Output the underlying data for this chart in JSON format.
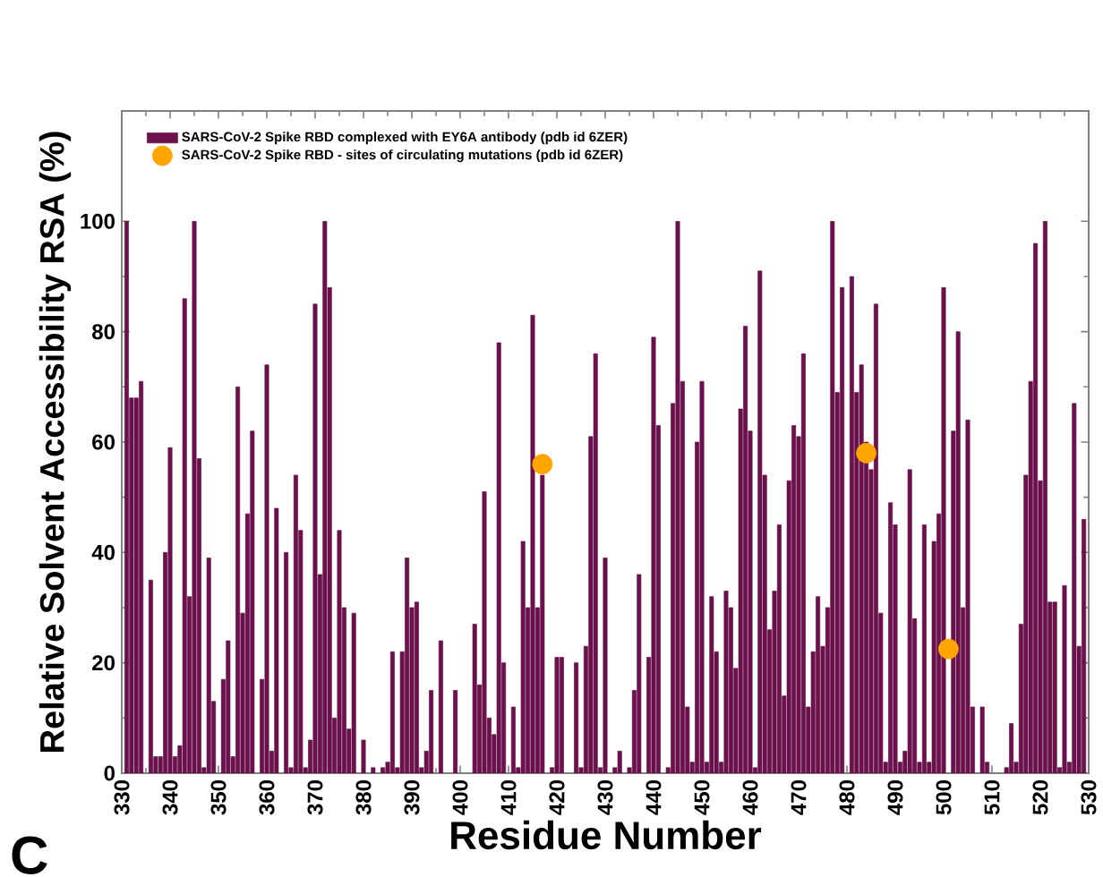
{
  "chart_data": {
    "type": "bar",
    "xlabel": "Residue Number",
    "ylabel": "Relative Solvent Accessibility RSA (%)",
    "annotations": [
      "C"
    ],
    "xlim": [
      330,
      530
    ],
    "ylim": [
      0,
      120
    ],
    "xticks": [
      330,
      340,
      350,
      360,
      370,
      380,
      390,
      400,
      410,
      420,
      430,
      440,
      450,
      460,
      470,
      480,
      490,
      500,
      510,
      520,
      530
    ],
    "yticks": [
      0,
      20,
      40,
      60,
      80,
      100
    ],
    "legend": "top left",
    "marker": "circle",
    "series": [
      {
        "name": "SARS-CoV-2 Spike RBD  complexed with EY6A antibody (pdb id 6ZER)",
        "color": "#6e0f4e",
        "x": [
          331,
          332,
          333,
          334,
          335,
          336,
          337,
          338,
          339,
          340,
          341,
          342,
          343,
          344,
          345,
          346,
          347,
          348,
          349,
          350,
          351,
          352,
          353,
          354,
          355,
          356,
          357,
          358,
          359,
          360,
          361,
          362,
          363,
          364,
          365,
          366,
          367,
          368,
          369,
          370,
          371,
          372,
          373,
          374,
          375,
          376,
          377,
          378,
          379,
          380,
          381,
          382,
          383,
          384,
          385,
          386,
          387,
          388,
          389,
          390,
          391,
          392,
          393,
          394,
          395,
          396,
          397,
          398,
          399,
          400,
          401,
          402,
          403,
          404,
          405,
          406,
          407,
          408,
          409,
          410,
          411,
          412,
          413,
          414,
          415,
          416,
          417,
          418,
          419,
          420,
          421,
          422,
          423,
          424,
          425,
          426,
          427,
          428,
          429,
          430,
          431,
          432,
          433,
          434,
          435,
          436,
          437,
          438,
          439,
          440,
          441,
          442,
          443,
          444,
          445,
          446,
          447,
          448,
          449,
          450,
          451,
          452,
          453,
          454,
          455,
          456,
          457,
          458,
          459,
          460,
          461,
          462,
          463,
          464,
          465,
          466,
          467,
          468,
          469,
          470,
          471,
          472,
          473,
          474,
          475,
          476,
          477,
          478,
          479,
          480,
          481,
          482,
          483,
          484,
          485,
          486,
          487,
          488,
          489,
          490,
          491,
          492,
          493,
          494,
          495,
          496,
          497,
          498,
          499,
          500,
          501,
          502,
          503,
          504,
          505,
          506,
          507,
          508,
          509,
          510,
          511,
          512,
          513,
          514,
          515,
          516,
          517,
          518,
          519,
          520,
          521,
          522,
          523,
          524,
          525,
          526,
          527,
          528,
          529
        ],
        "values": [
          100,
          68,
          68,
          71,
          null,
          35,
          3,
          3,
          40,
          59,
          3,
          5,
          86,
          32,
          100,
          57,
          1,
          39,
          13,
          null,
          17,
          24,
          3,
          70,
          29,
          47,
          62,
          null,
          17,
          74,
          4,
          48,
          null,
          40,
          1,
          54,
          44,
          1,
          6,
          85,
          36,
          100,
          88,
          10,
          44,
          30,
          8,
          29,
          null,
          6,
          null,
          1,
          null,
          1,
          2,
          22,
          1,
          22,
          39,
          30,
          31,
          1,
          4,
          15,
          null,
          24,
          null,
          null,
          15,
          null,
          null,
          null,
          27,
          16,
          51,
          10,
          7,
          78,
          20,
          null,
          12,
          1,
          42,
          30,
          83,
          30,
          54,
          null,
          1,
          21,
          21,
          null,
          null,
          20,
          1,
          23,
          61,
          76,
          1,
          39,
          null,
          1,
          4,
          null,
          1,
          15,
          36,
          null,
          21,
          79,
          63,
          null,
          1,
          67,
          100,
          71,
          12,
          2,
          60,
          71,
          2,
          32,
          22,
          2,
          33,
          30,
          19,
          66,
          81,
          62,
          1,
          91,
          54,
          26,
          33,
          45,
          14,
          53,
          63,
          61,
          76,
          12,
          22,
          32,
          23,
          30,
          100,
          69,
          88,
          null,
          90,
          69,
          74,
          60,
          55,
          85,
          29,
          2,
          49,
          45,
          2,
          4,
          55,
          28,
          2,
          45,
          2,
          42,
          47,
          88,
          null,
          62,
          80,
          30,
          64,
          12,
          null,
          12,
          2,
          null,
          null,
          null,
          1,
          9,
          2,
          27,
          54,
          71,
          96,
          53,
          100,
          31,
          31,
          1,
          34,
          2,
          67,
          23,
          46
        ]
      },
      {
        "name": "SARS-CoV-2 Spike RBD - sites of circulating mutations (pdb id 6ZER)",
        "type": "scatter",
        "color": "#ffa500",
        "x": [
          417,
          484,
          501
        ],
        "values": [
          56,
          58,
          22.5
        ]
      }
    ]
  }
}
